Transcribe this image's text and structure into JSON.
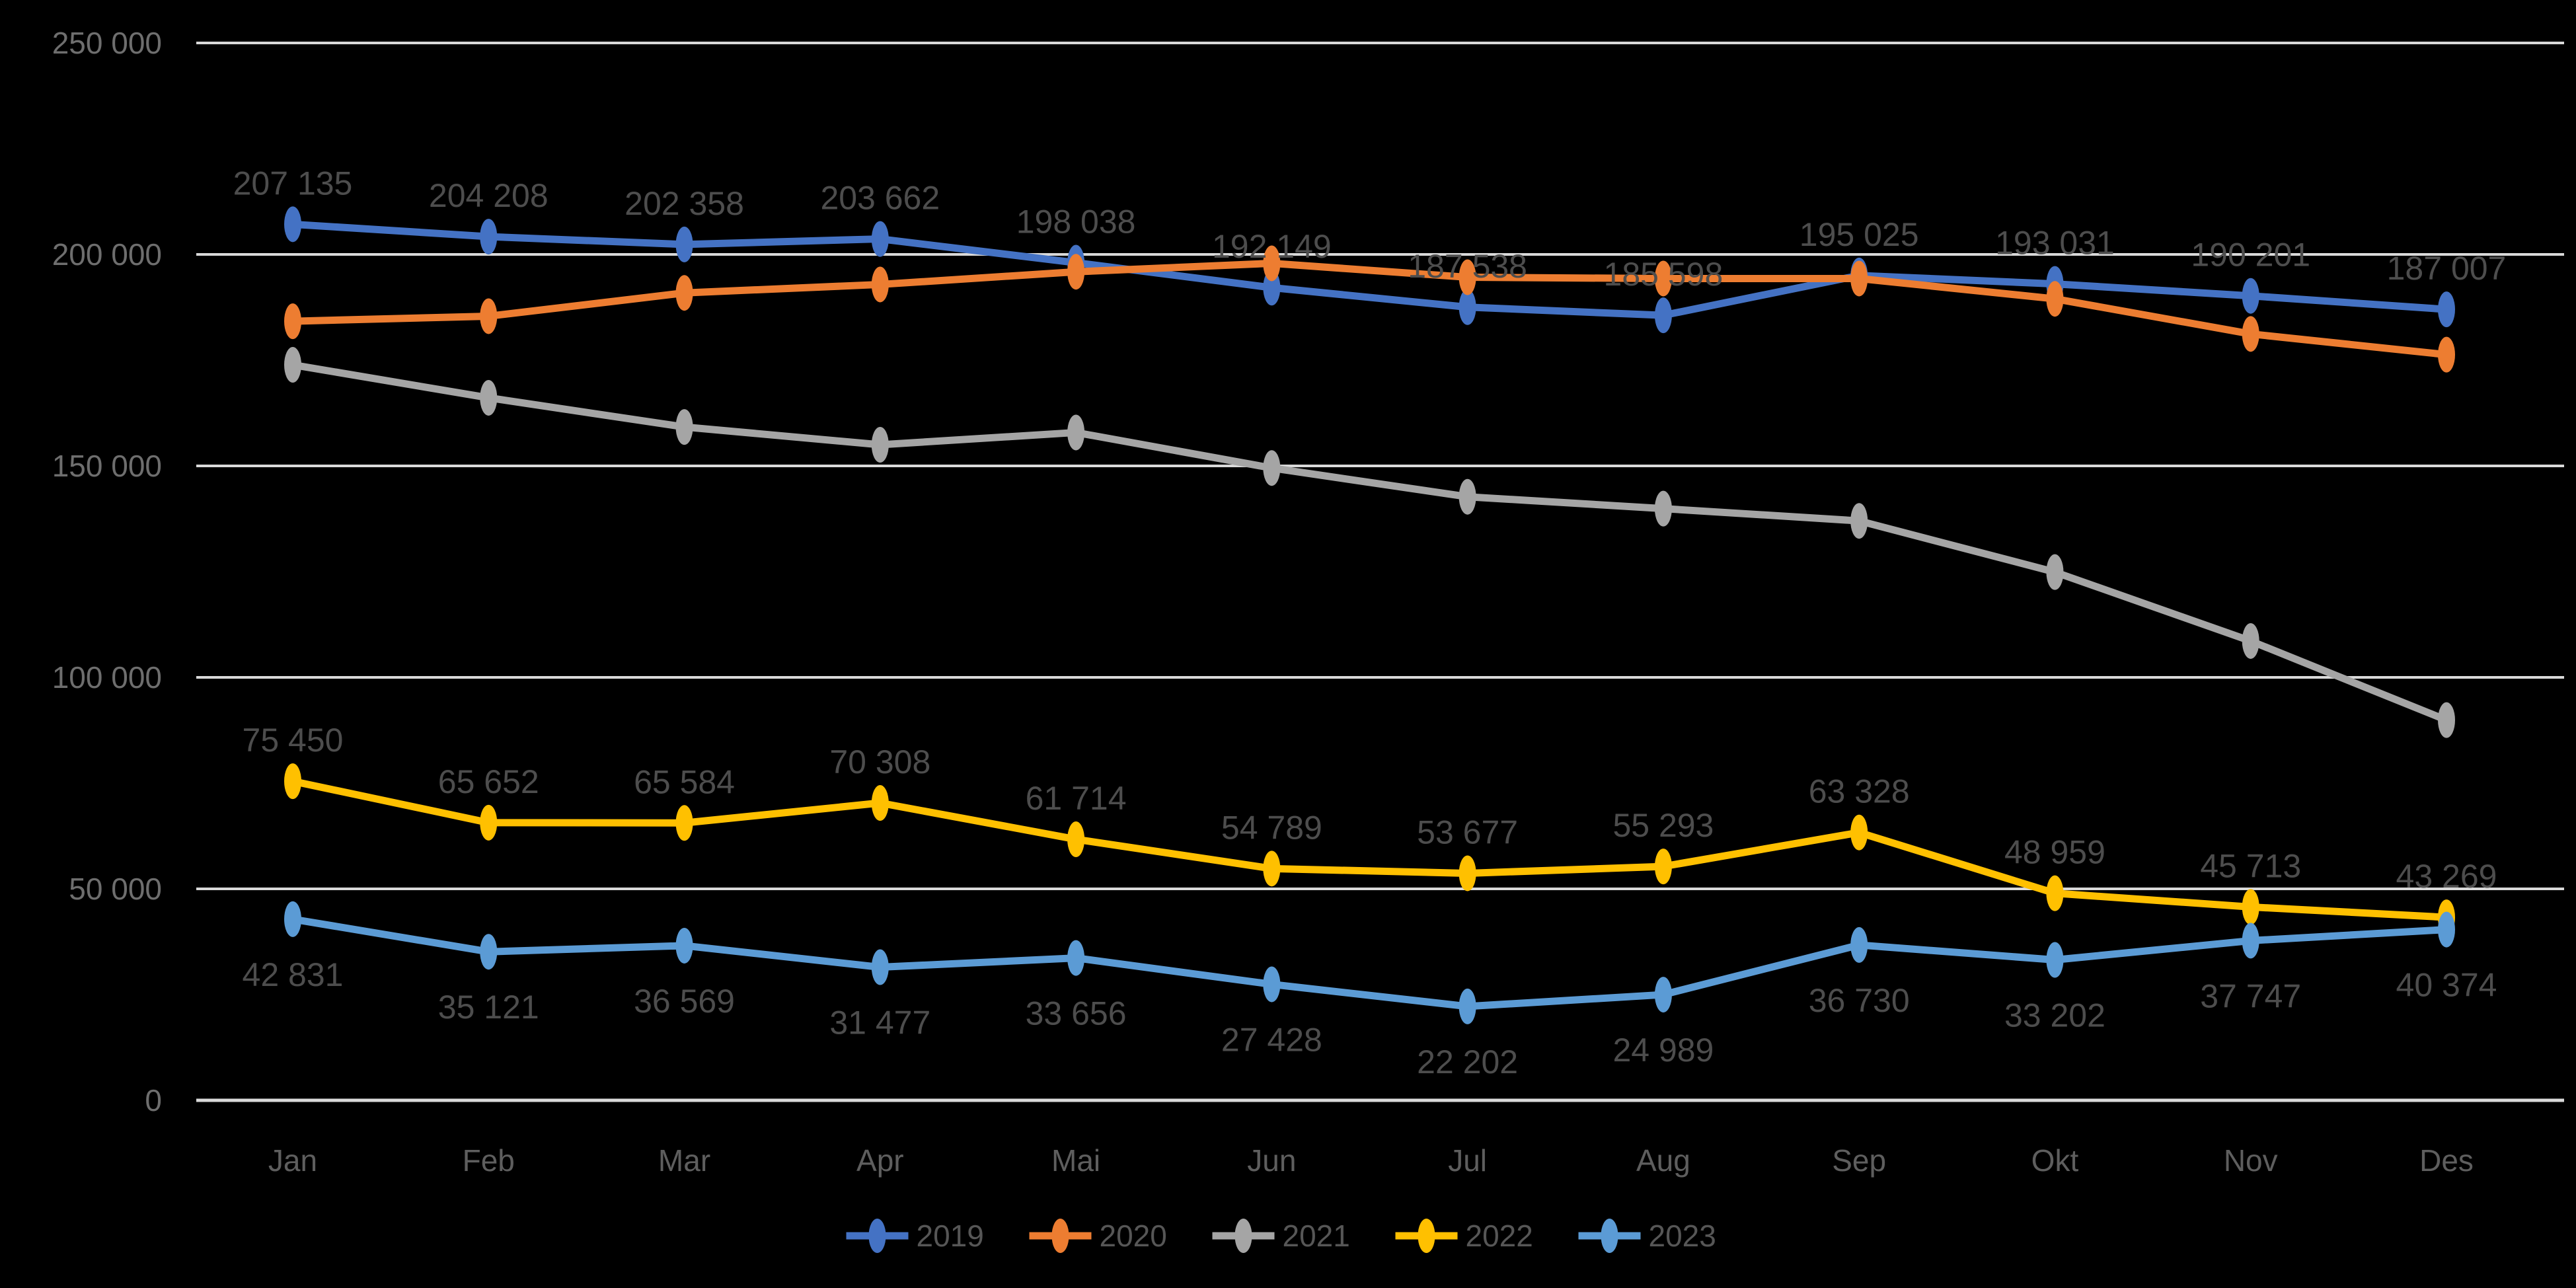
{
  "chart_data": {
    "type": "line",
    "title": "",
    "categories": [
      "Jan",
      "Feb",
      "Mar",
      "Apr",
      "Mai",
      "Jun",
      "Jul",
      "Aug",
      "Sep",
      "Okt",
      "Nov",
      "Des"
    ],
    "y_axis": {
      "min": 0,
      "max": 250000,
      "step": 50000,
      "tick_labels": [
        "0",
        "50 000",
        "100 000",
        "150 000",
        "200 000",
        "250 000"
      ]
    },
    "grid": true,
    "legend_position": "bottom-center",
    "number_format": "space-grouped",
    "series": [
      {
        "name": "2019",
        "color": "#4472C4",
        "data_labels": "above",
        "values": [
          207135,
          204208,
          202358,
          203662,
          198038,
          192149,
          187538,
          185598,
          195025,
          193031,
          190201,
          187007
        ]
      },
      {
        "name": "2020",
        "color": "#ED7D31",
        "data_labels": "none",
        "values_estimated_from_plot": true,
        "values": [
          184200,
          185400,
          190900,
          192900,
          195900,
          197900,
          194600,
          194300,
          194300,
          189500,
          181200,
          176300
        ]
      },
      {
        "name": "2021",
        "color": "#A5A5A5",
        "data_labels": "none",
        "values_estimated_from_plot": true,
        "values": [
          173900,
          166100,
          159200,
          155000,
          157900,
          149500,
          142700,
          139900,
          137000,
          124900,
          108600,
          89900
        ]
      },
      {
        "name": "2022",
        "color": "#FFC000",
        "data_labels": "above",
        "values": [
          75450,
          65652,
          65584,
          70308,
          61714,
          54789,
          53677,
          55293,
          63328,
          48959,
          45713,
          43269
        ]
      },
      {
        "name": "2023",
        "color": "#5B9BD5",
        "data_labels": "below",
        "values": [
          42831,
          35121,
          36569,
          31477,
          33656,
          27428,
          22202,
          24989,
          36730,
          33202,
          37747,
          40374
        ]
      }
    ],
    "style": {
      "background": "#000000",
      "gridline_color": "#D9D9D9",
      "axis_line_color": "#D9D9D9",
      "y_axis_text_color": "#6E6E6E",
      "x_axis_text_color": "#5E5E5E",
      "data_label_color": "#4D4D4D",
      "legend_text_color": "#565656"
    }
  }
}
